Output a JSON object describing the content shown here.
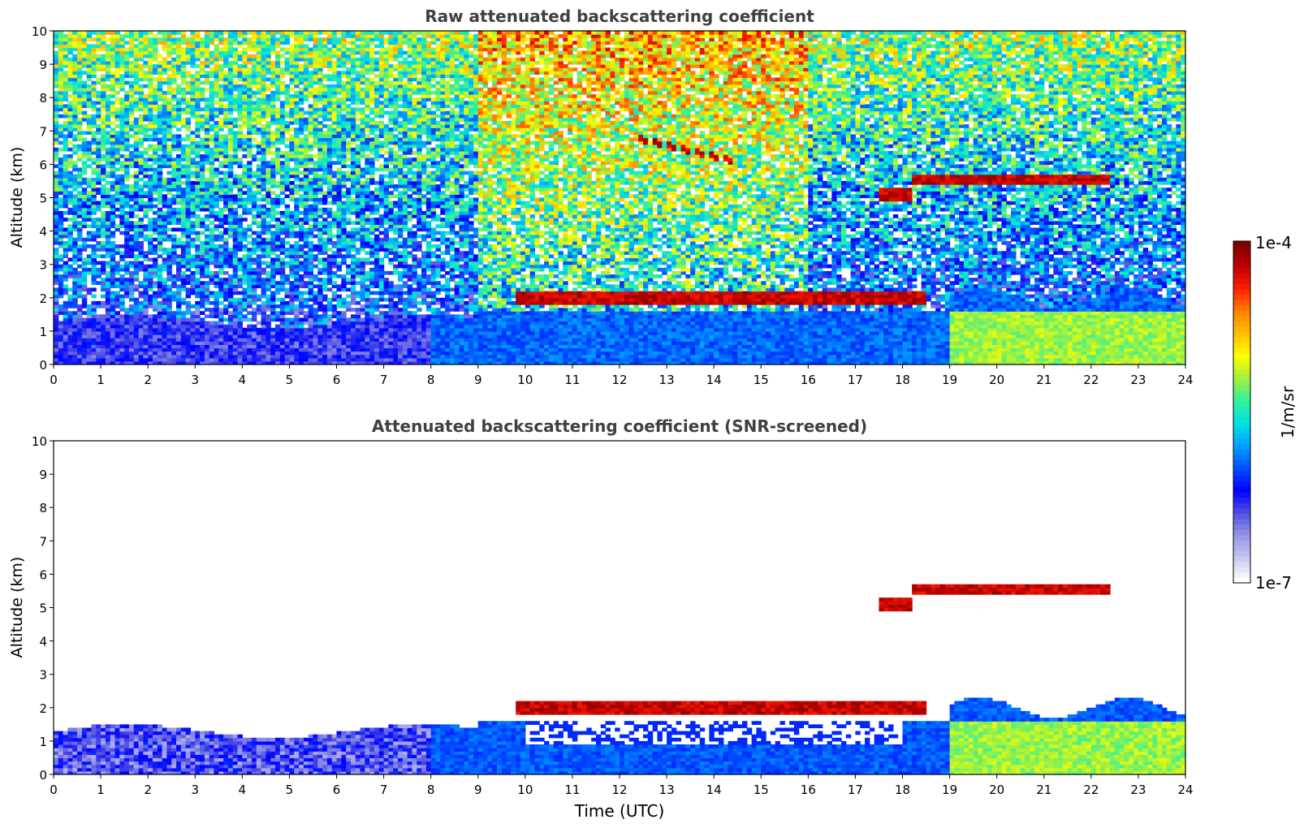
{
  "chart_data": [
    {
      "type": "heatmap",
      "title": "Raw attenuated backscattering coefficient",
      "xlabel": "",
      "ylabel": "Altitude (km)",
      "xlim": [
        0,
        24
      ],
      "ylim": [
        0,
        10
      ],
      "x_ticks": [
        "0",
        "1",
        "2",
        "3",
        "4",
        "5",
        "6",
        "7",
        "8",
        "9",
        "10",
        "11",
        "12",
        "13",
        "14",
        "15",
        "16",
        "17",
        "18",
        "19",
        "20",
        "21",
        "22",
        "23",
        "24"
      ],
      "y_ticks": [
        "0",
        "1",
        "2",
        "3",
        "4",
        "5",
        "6",
        "7",
        "8",
        "9",
        "10"
      ],
      "features": [
        {
          "kind": "cloud_layer",
          "time_start": 9.8,
          "time_end": 18.5,
          "alt_km": 2.0,
          "level": "high"
        },
        {
          "kind": "cloud_layer",
          "time_start": 18.2,
          "time_end": 22.4,
          "alt_km": 5.6,
          "level": "high"
        },
        {
          "kind": "cloud_patch",
          "time_start": 17.5,
          "time_end": 18.2,
          "alt_km": 5.1,
          "level": "high"
        },
        {
          "kind": "cloud_fragments",
          "time_start": 12.3,
          "time_end": 14.5,
          "alt_km": 6.3,
          "level": "high"
        },
        {
          "kind": "boundary_layer",
          "time_start": 19.0,
          "time_end": 24.0,
          "alt_km": 1.0,
          "level": "medium"
        },
        {
          "kind": "noise_region",
          "time_start": 0,
          "time_end": 24,
          "alt_km_from": 3,
          "alt_km_to": 10,
          "level": "noisy"
        }
      ]
    },
    {
      "type": "heatmap",
      "title": "Attenuated backscattering coefficient (SNR-screened)",
      "xlabel": "Time (UTC)",
      "ylabel": "Altitude (km)",
      "xlim": [
        0,
        24
      ],
      "ylim": [
        0,
        10
      ],
      "x_ticks": [
        "0",
        "1",
        "2",
        "3",
        "4",
        "5",
        "6",
        "7",
        "8",
        "9",
        "10",
        "11",
        "12",
        "13",
        "14",
        "15",
        "16",
        "17",
        "18",
        "19",
        "20",
        "21",
        "22",
        "23",
        "24"
      ],
      "y_ticks": [
        "0",
        "1",
        "2",
        "3",
        "4",
        "5",
        "6",
        "7",
        "8",
        "9",
        "10"
      ],
      "features": [
        {
          "kind": "cloud_layer",
          "time_start": 9.8,
          "time_end": 18.5,
          "alt_km": 2.0,
          "level": "high"
        },
        {
          "kind": "cloud_layer",
          "time_start": 18.2,
          "time_end": 22.4,
          "alt_km": 5.6,
          "level": "high"
        },
        {
          "kind": "cloud_patch",
          "time_start": 17.5,
          "time_end": 18.2,
          "alt_km": 5.1,
          "level": "high"
        },
        {
          "kind": "boundary_layer",
          "time_start": 0,
          "time_end": 24,
          "alt_km": 1.0,
          "level": "low-medium"
        }
      ]
    }
  ],
  "colorbar": {
    "label": "1/m/sr",
    "max_label": "1e-4",
    "min_label": "1e-7",
    "colors": [
      "#ffffff",
      "#c8c8f0",
      "#9696e6",
      "#5050e6",
      "#0000ff",
      "#0050ff",
      "#00a0ff",
      "#00e0e0",
      "#30f0a0",
      "#a0f040",
      "#ffff00",
      "#ffc000",
      "#ff8000",
      "#ff2000",
      "#c00000",
      "#800000"
    ]
  }
}
